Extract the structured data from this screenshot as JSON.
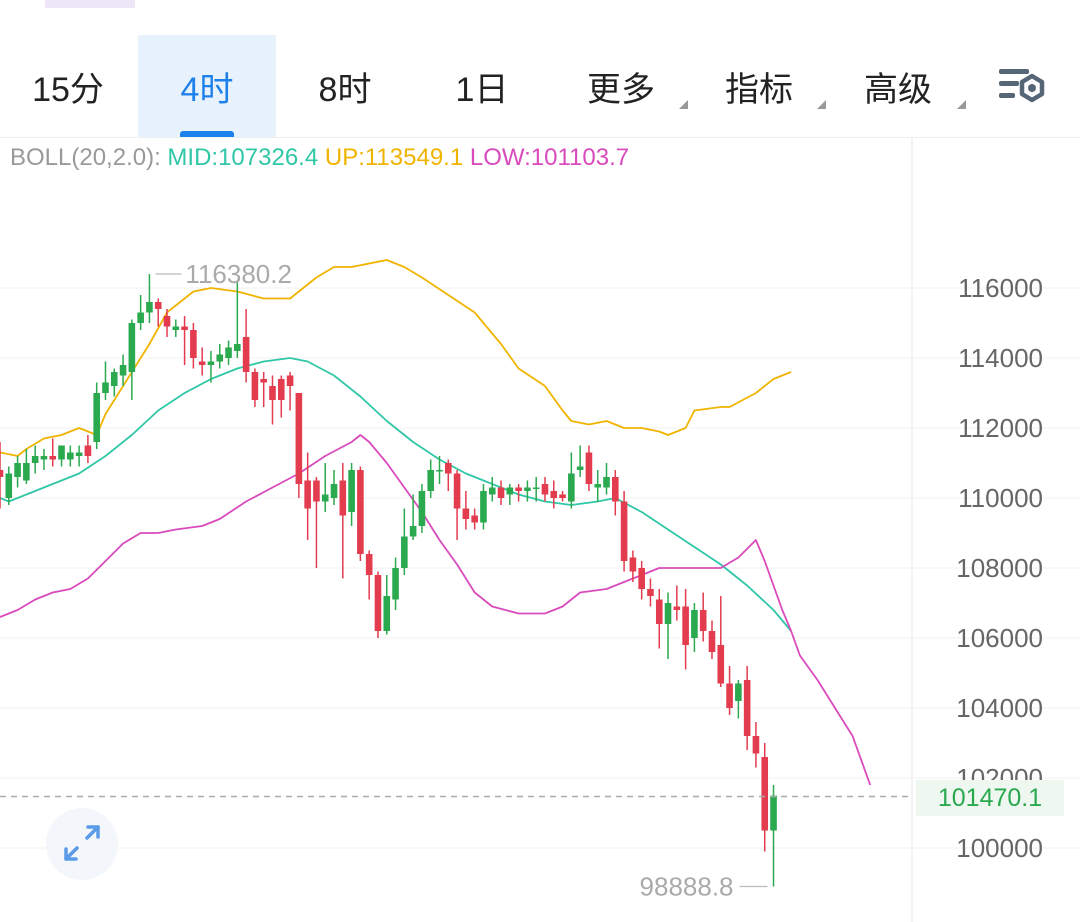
{
  "tabs": [
    {
      "label": "15分",
      "active": false,
      "dropdown": false
    },
    {
      "label": "4时",
      "active": true,
      "dropdown": false
    },
    {
      "label": "8时",
      "active": false,
      "dropdown": false
    },
    {
      "label": "1日",
      "active": false,
      "dropdown": false
    },
    {
      "label": "更多",
      "active": false,
      "dropdown": true
    },
    {
      "label": "指标",
      "active": false,
      "dropdown": true
    },
    {
      "label": "高级",
      "active": false,
      "dropdown": true
    }
  ],
  "settings_icon": "chart-settings-icon",
  "boll": {
    "name": "BOLL(20,2.0):",
    "mid": "MID:107326.4",
    "up": "UP:113549.1",
    "low": "LOW:101103.7"
  },
  "colors": {
    "up_candle": "#2aa94f",
    "down_candle": "#e23c4e",
    "mid_line": "#2fc7a6",
    "upper_line": "#f0b400",
    "lower_line": "#d94bbd",
    "accent": "#1e80ea"
  },
  "chart_data": {
    "type": "candlestick",
    "y_axis_side": "right",
    "ylim": [
      98000,
      117500
    ],
    "yticks": [
      100000,
      102000,
      104000,
      106000,
      108000,
      110000,
      112000,
      114000,
      116000
    ],
    "current_price": "101470.1",
    "max_label": "116380.2",
    "min_label": "98888.8",
    "grid": true,
    "candles": [
      [
        110800,
        110600,
        111600,
        109700
      ],
      [
        110000,
        110700,
        110900,
        109800
      ],
      [
        110600,
        111000,
        111200,
        110300
      ],
      [
        110500,
        111000,
        111400,
        110400
      ],
      [
        111000,
        111200,
        111500,
        110700
      ],
      [
        111100,
        111200,
        111400,
        110800
      ],
      [
        111200,
        111100,
        111700,
        110900
      ],
      [
        111100,
        111500,
        111500,
        110900
      ],
      [
        111100,
        111300,
        111500,
        110900
      ],
      [
        111200,
        111300,
        111500,
        110900
      ],
      [
        111500,
        111200,
        111800,
        111000
      ],
      [
        111600,
        113000,
        113300,
        111400
      ],
      [
        113000,
        113300,
        113900,
        112800
      ],
      [
        113200,
        113600,
        113700,
        112900
      ],
      [
        113500,
        113800,
        114100,
        113200
      ],
      [
        113600,
        115000,
        115100,
        112800
      ],
      [
        115000,
        115300,
        115800,
        114800
      ],
      [
        115300,
        115600,
        116400,
        115000
      ],
      [
        115600,
        115400,
        115700,
        114900
      ],
      [
        115200,
        114900,
        115400,
        114600
      ],
      [
        114800,
        114900,
        115100,
        114600
      ],
      [
        114900,
        114800,
        115200,
        113800
      ],
      [
        114800,
        114000,
        115000,
        113700
      ],
      [
        113900,
        113800,
        114300,
        113500
      ],
      [
        113800,
        113900,
        114200,
        113300
      ],
      [
        113900,
        114100,
        114400,
        113700
      ],
      [
        114000,
        114300,
        114500,
        113800
      ],
      [
        114200,
        114400,
        116200,
        114000
      ],
      [
        114600,
        113600,
        115400,
        113300
      ],
      [
        113600,
        112800,
        113700,
        112600
      ],
      [
        113400,
        113300,
        113600,
        112600
      ],
      [
        113200,
        112800,
        113500,
        112100
      ],
      [
        113400,
        112800,
        113500,
        112300
      ],
      [
        113500,
        113200,
        113600,
        112500
      ],
      [
        113000,
        110400,
        113000,
        110000
      ],
      [
        110500,
        109700,
        111300,
        108800
      ],
      [
        110500,
        109900,
        110600,
        108000
      ],
      [
        109900,
        110100,
        111000,
        109600
      ],
      [
        110000,
        110400,
        110800,
        109800
      ],
      [
        110500,
        109500,
        111000,
        107700
      ],
      [
        109600,
        110800,
        111000,
        109200
      ],
      [
        110800,
        108400,
        110900,
        108200
      ],
      [
        108400,
        107800,
        108500,
        107100
      ],
      [
        107800,
        106200,
        107900,
        106000
      ],
      [
        106200,
        107200,
        107800,
        106100
      ],
      [
        107100,
        108000,
        108300,
        106800
      ],
      [
        108000,
        108900,
        109700,
        107800
      ],
      [
        108900,
        109200,
        110100,
        108800
      ],
      [
        109200,
        110200,
        110400,
        109000
      ],
      [
        110200,
        110800,
        111100,
        110000
      ],
      [
        110800,
        110800,
        111200,
        110400
      ],
      [
        111000,
        110700,
        111100,
        110200
      ],
      [
        110700,
        109700,
        110800,
        108800
      ],
      [
        109700,
        109400,
        110200,
        109100
      ],
      [
        109500,
        109300,
        109700,
        109100
      ],
      [
        109300,
        110200,
        110400,
        109100
      ],
      [
        110100,
        110300,
        110600,
        109900
      ],
      [
        110300,
        110000,
        110500,
        109800
      ],
      [
        110100,
        110300,
        110400,
        109800
      ],
      [
        110300,
        110200,
        110400,
        109900
      ],
      [
        110200,
        110300,
        110500,
        109900
      ],
      [
        110300,
        110300,
        110600,
        109900
      ],
      [
        110400,
        110100,
        110600,
        109900
      ],
      [
        110200,
        110000,
        110500,
        109700
      ],
      [
        110100,
        110000,
        110200,
        109900
      ],
      [
        109900,
        110700,
        111300,
        109700
      ],
      [
        110800,
        110900,
        111500,
        110600
      ],
      [
        111300,
        110400,
        111500,
        110200
      ],
      [
        110300,
        110400,
        110800,
        109900
      ],
      [
        110300,
        110600,
        111000,
        110100
      ],
      [
        110600,
        109900,
        110800,
        109500
      ],
      [
        109900,
        108200,
        110200,
        107900
      ],
      [
        108300,
        107900,
        108500,
        107600
      ],
      [
        108000,
        107400,
        108200,
        107100
      ],
      [
        107400,
        107200,
        107700,
        106900
      ],
      [
        107100,
        106400,
        107400,
        105700
      ],
      [
        106400,
        107000,
        107300,
        105400
      ],
      [
        106900,
        106800,
        107500,
        106500
      ],
      [
        106900,
        105800,
        107400,
        105100
      ],
      [
        106000,
        106800,
        107000,
        105600
      ],
      [
        106800,
        106200,
        107300,
        105900
      ],
      [
        106200,
        105600,
        106500,
        105400
      ],
      [
        105800,
        104700,
        107200,
        104600
      ],
      [
        104700,
        104000,
        105200,
        103800
      ],
      [
        104200,
        104700,
        104800,
        103700
      ],
      [
        104800,
        103200,
        105200,
        102800
      ],
      [
        103200,
        102700,
        103600,
        102300
      ],
      [
        102600,
        100500,
        103000,
        99900
      ],
      [
        100500,
        101500,
        101800,
        98900
      ]
    ],
    "mid": [
      [
        0,
        110000
      ],
      [
        1,
        109900
      ],
      [
        3,
        110100
      ],
      [
        6,
        110400
      ],
      [
        9,
        110700
      ],
      [
        12,
        111200
      ],
      [
        15,
        111800
      ],
      [
        18,
        112500
      ],
      [
        21,
        113000
      ],
      [
        24,
        113400
      ],
      [
        27,
        113700
      ],
      [
        30,
        113900
      ],
      [
        33,
        114000
      ],
      [
        35,
        113900
      ],
      [
        38,
        113500
      ],
      [
        41,
        112900
      ],
      [
        44,
        112200
      ],
      [
        47,
        111600
      ],
      [
        50,
        111100
      ],
      [
        53,
        110700
      ],
      [
        56,
        110400
      ],
      [
        59,
        110100
      ],
      [
        62,
        109900
      ],
      [
        65,
        109800
      ],
      [
        68,
        109900
      ],
      [
        70,
        110000
      ],
      [
        73,
        109600
      ],
      [
        76,
        109100
      ],
      [
        79,
        108600
      ],
      [
        82,
        108100
      ],
      [
        85,
        107500
      ],
      [
        88,
        106800
      ],
      [
        90,
        106200
      ]
    ],
    "upper": [
      [
        0,
        111300
      ],
      [
        2,
        111200
      ],
      [
        3,
        111400
      ],
      [
        5,
        111700
      ],
      [
        7,
        111800
      ],
      [
        9,
        112000
      ],
      [
        11,
        111800
      ],
      [
        12,
        112400
      ],
      [
        14,
        113200
      ],
      [
        17,
        114400
      ],
      [
        19,
        115300
      ],
      [
        22,
        115900
      ],
      [
        24,
        116000
      ],
      [
        27,
        115900
      ],
      [
        30,
        115700
      ],
      [
        33,
        115700
      ],
      [
        36,
        116300
      ],
      [
        38,
        116600
      ],
      [
        40,
        116600
      ],
      [
        44,
        116800
      ],
      [
        46,
        116600
      ],
      [
        48,
        116300
      ],
      [
        51,
        115800
      ],
      [
        54,
        115300
      ],
      [
        57,
        114400
      ],
      [
        59,
        113700
      ],
      [
        62,
        113200
      ],
      [
        64,
        112500
      ],
      [
        65,
        112200
      ],
      [
        67,
        112100
      ],
      [
        69,
        112200
      ],
      [
        71,
        112000
      ],
      [
        73,
        112000
      ],
      [
        75,
        111900
      ],
      [
        76,
        111800
      ],
      [
        78,
        112000
      ],
      [
        79,
        112500
      ],
      [
        82,
        112600
      ],
      [
        83,
        112600
      ],
      [
        86,
        113000
      ],
      [
        88,
        113400
      ],
      [
        90,
        113600
      ]
    ],
    "lower": [
      [
        0,
        106600
      ],
      [
        2,
        106800
      ],
      [
        4,
        107100
      ],
      [
        6,
        107300
      ],
      [
        8,
        107400
      ],
      [
        10,
        107700
      ],
      [
        12,
        108200
      ],
      [
        14,
        108700
      ],
      [
        16,
        109000
      ],
      [
        18,
        109000
      ],
      [
        20,
        109100
      ],
      [
        23,
        109200
      ],
      [
        25,
        109400
      ],
      [
        28,
        109900
      ],
      [
        31,
        110300
      ],
      [
        34,
        110700
      ],
      [
        37,
        111200
      ],
      [
        40,
        111600
      ],
      [
        41,
        111800
      ],
      [
        42,
        111600
      ],
      [
        44,
        111000
      ],
      [
        46,
        110300
      ],
      [
        48,
        109600
      ],
      [
        50,
        108800
      ],
      [
        52,
        108100
      ],
      [
        54,
        107300
      ],
      [
        56,
        106900
      ],
      [
        59,
        106700
      ],
      [
        62,
        106700
      ],
      [
        64,
        106900
      ],
      [
        66,
        107300
      ],
      [
        69,
        107400
      ],
      [
        71,
        107600
      ],
      [
        73,
        107800
      ],
      [
        75,
        108000
      ],
      [
        78,
        108000
      ],
      [
        82,
        108000
      ],
      [
        84,
        108300
      ],
      [
        86,
        108800
      ],
      [
        87,
        108200
      ],
      [
        88,
        107500
      ],
      [
        89,
        106800
      ],
      [
        90,
        106200
      ],
      [
        91,
        105500
      ],
      [
        93,
        104800
      ],
      [
        95,
        104000
      ],
      [
        97,
        103200
      ],
      [
        99,
        101800
      ]
    ]
  }
}
